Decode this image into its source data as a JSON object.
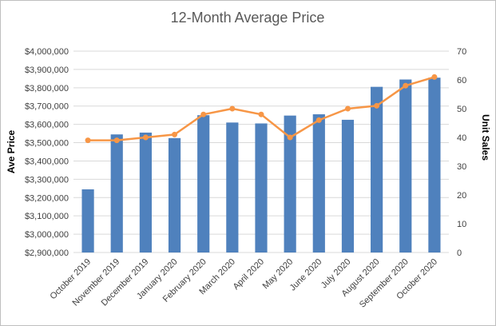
{
  "chart_data": {
    "type": "bar",
    "title": "12-Month Average Price",
    "categories": [
      "October 2019",
      "November 2019",
      "December 2019",
      "January 2020",
      "February 2020",
      "March 2020",
      "April 2020",
      "May 2020",
      "June 2020",
      "July 2020",
      "August 2020",
      "September 2020",
      "October 2020"
    ],
    "ylabel_left": "Ave Price",
    "ylabel_right": "Unit Sales",
    "ylim_left": [
      2900000,
      4000000
    ],
    "ylim_right": [
      0,
      70
    ],
    "yticks_left": [
      "$2,900,000",
      "$3,000,000",
      "$3,100,000",
      "$3,200,000",
      "$3,300,000",
      "$3,400,000",
      "$3,500,000",
      "$3,600,000",
      "$3,700,000",
      "$3,800,000",
      "$3,900,000",
      "$4,000,000"
    ],
    "yticks_right": [
      "0",
      "10",
      "20",
      "30",
      "40",
      "50",
      "60",
      "70"
    ],
    "grid": true,
    "legend": "none",
    "series": [
      {
        "type": "bar",
        "axis": "left",
        "color": "#4f81bd",
        "values": [
          3245000,
          3545000,
          3555000,
          3525000,
          3650000,
          3610000,
          3605000,
          3648000,
          3655000,
          3625000,
          3805000,
          3845000,
          3855000
        ]
      },
      {
        "type": "line",
        "axis": "right",
        "color": "#f79646",
        "values": [
          39,
          39,
          40,
          41,
          48,
          50,
          48,
          40,
          46,
          50,
          51,
          58,
          61
        ]
      }
    ]
  }
}
